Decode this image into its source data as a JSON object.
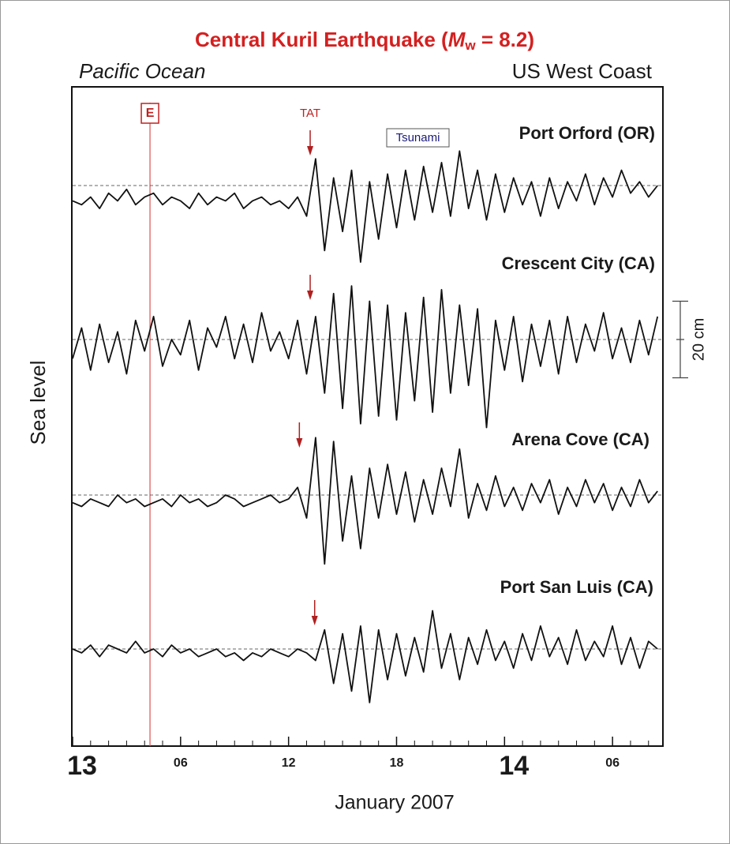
{
  "chart_data": {
    "type": "line",
    "title_parts": [
      "Central Kuril Earthquake  (",
      "M",
      "w",
      " = 8.2)"
    ],
    "left_label": "Pacific  Ocean",
    "right_label": "US West Coast",
    "y_label": "Sea  level",
    "x_label": "January  2007",
    "event": {
      "label": "E",
      "x": 4.3
    },
    "arrival_label": "TAT",
    "tsunami_label": "Tsunami",
    "scale_bar": {
      "value": 20,
      "label": "20 cm"
    },
    "xlim": [
      0,
      32.8
    ],
    "xticks": [
      {
        "value": 0,
        "label": "13"
      },
      {
        "value": 6,
        "label": "06"
      },
      12,
      18,
      {
        "value": 24,
        "label": "14"
      },
      {
        "value": 30,
        "label": "06"
      }
    ],
    "xminorticks": [
      1,
      2,
      3,
      4,
      5,
      7,
      8,
      9,
      10,
      11,
      13,
      14,
      15,
      16,
      17,
      19,
      20,
      21,
      22,
      23,
      25,
      26,
      27,
      28,
      29,
      31,
      32
    ],
    "x": [
      0,
      0.5,
      1,
      1.5,
      2,
      2.5,
      3,
      3.5,
      4,
      4.5,
      5,
      5.5,
      6,
      6.5,
      7,
      7.5,
      8,
      8.5,
      9,
      9.5,
      10,
      10.5,
      11,
      11.5,
      12,
      12.5,
      13,
      13.5,
      14,
      14.5,
      15,
      15.5,
      16,
      16.5,
      17,
      17.5,
      18,
      18.5,
      19,
      19.5,
      20,
      20.5,
      21,
      21.5,
      22,
      22.5,
      23,
      23.5,
      24,
      24.5,
      25,
      25.5,
      26,
      26.5,
      27,
      27.5,
      28,
      28.5,
      29,
      29.5,
      30,
      30.5,
      31,
      31.5,
      32,
      32.5
    ],
    "series": [
      {
        "name": "Port Orford  (OR)",
        "color": "#111111",
        "arrival": 13.2,
        "values": [
          -4,
          -5,
          -3,
          -6,
          -2,
          -4,
          -1,
          -5,
          -3,
          -2,
          -5,
          -3,
          -4,
          -6,
          -2,
          -5,
          -3,
          -4,
          -2,
          -6,
          -4,
          -3,
          -5,
          -4,
          -6,
          -3,
          -8,
          7,
          -17,
          2,
          -12,
          4,
          -20,
          1,
          -14,
          3,
          -11,
          4,
          -9,
          5,
          -7,
          6,
          -8,
          9,
          -6,
          4,
          -9,
          3,
          -7,
          2,
          -5,
          1,
          -8,
          2,
          -6,
          1,
          -4,
          3,
          -5,
          2,
          -3,
          4,
          -2,
          1,
          -3,
          0
        ]
      },
      {
        "name": "Crescent City  (CA)",
        "color": "#111111",
        "arrival": 13.2,
        "values": [
          -5,
          3,
          -8,
          4,
          -6,
          2,
          -9,
          5,
          -3,
          6,
          -7,
          0,
          -4,
          5,
          -8,
          3,
          -2,
          6,
          -5,
          4,
          -6,
          7,
          -3,
          2,
          -5,
          5,
          -9,
          6,
          -14,
          12,
          -18,
          14,
          -22,
          10,
          -20,
          9,
          -21,
          7,
          -16,
          11,
          -19,
          13,
          -14,
          9,
          -12,
          8,
          -23,
          5,
          -8,
          6,
          -11,
          4,
          -7,
          5,
          -9,
          6,
          -6,
          4,
          -3,
          7,
          -5,
          3,
          -6,
          5,
          -4,
          6
        ]
      },
      {
        "name": "Arena Cove (CA)",
        "color": "#111111",
        "arrival": 12.6,
        "values": [
          -2,
          -3,
          -1,
          -2,
          -3,
          0,
          -2,
          -1,
          -3,
          -2,
          -1,
          -3,
          0,
          -2,
          -1,
          -3,
          -2,
          0,
          -1,
          -3,
          -2,
          -1,
          0,
          -2,
          -1,
          2,
          -6,
          15,
          -18,
          14,
          -12,
          5,
          -14,
          7,
          -6,
          8,
          -5,
          6,
          -7,
          4,
          -5,
          7,
          -3,
          12,
          -6,
          3,
          -4,
          5,
          -3,
          2,
          -4,
          3,
          -2,
          4,
          -5,
          2,
          -3,
          4,
          -2,
          3,
          -4,
          2,
          -3,
          4,
          -2,
          1
        ]
      },
      {
        "name": "Port San Luis (CA)",
        "color": "#111111",
        "arrival": 13.45,
        "values": [
          0,
          -1,
          1,
          -2,
          1,
          0,
          -1,
          2,
          -1,
          0,
          -2,
          1,
          -1,
          0,
          -2,
          -1,
          0,
          -2,
          -1,
          -3,
          -1,
          -2,
          0,
          -1,
          -2,
          0,
          -1,
          -3,
          5,
          -9,
          4,
          -11,
          6,
          -14,
          5,
          -8,
          4,
          -7,
          3,
          -6,
          10,
          -5,
          4,
          -8,
          3,
          -4,
          5,
          -3,
          2,
          -5,
          4,
          -3,
          6,
          -2,
          3,
          -4,
          5,
          -3,
          2,
          -2,
          6,
          -4,
          3,
          -5,
          2,
          0
        ]
      }
    ]
  }
}
